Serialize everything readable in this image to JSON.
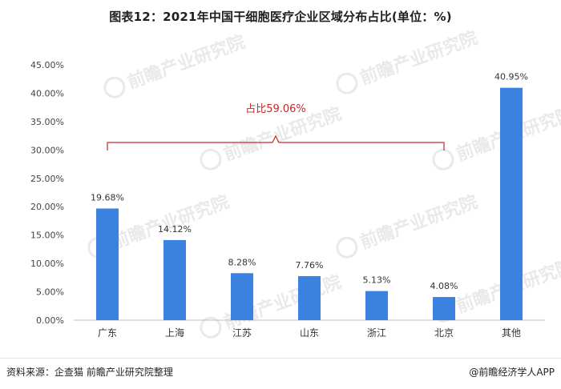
{
  "chart_data": {
    "type": "bar",
    "title": "图表12：2021年中国干细胞医疗企业区域分布占比(单位：%)",
    "categories": [
      "广东",
      "上海",
      "江苏",
      "山东",
      "浙江",
      "北京",
      "其他"
    ],
    "values": [
      19.68,
      14.12,
      8.28,
      7.76,
      5.13,
      4.08,
      40.95
    ],
    "data_labels": [
      "19.68%",
      "14.12%",
      "8.28%",
      "7.76%",
      "5.13%",
      "4.08%",
      "40.95%"
    ],
    "y_ticks": [
      "0.00%",
      "5.00%",
      "10.00%",
      "15.00%",
      "20.00%",
      "25.00%",
      "30.00%",
      "35.00%",
      "40.00%",
      "45.00%"
    ],
    "ylim": [
      0,
      45
    ],
    "grid": false,
    "bar_color": "#3b82e0",
    "annotation": {
      "text": "占比59.06%",
      "color": "#c62828",
      "spans_categories": [
        "广东",
        "北京"
      ]
    }
  },
  "footer": {
    "source": "资料来源：企查猫 前瞻产业研究院整理",
    "brand": "@前瞻经济学人APP"
  },
  "watermark": {
    "text": "前瞻产业研究院"
  }
}
